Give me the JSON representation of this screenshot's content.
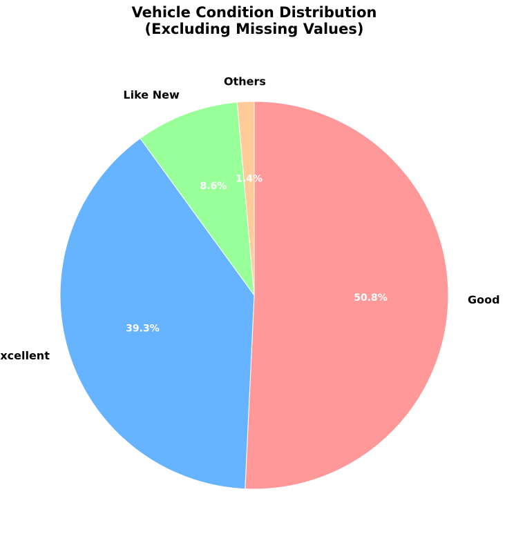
{
  "chart_data": {
    "type": "pie",
    "title": "Vehicle Condition Distribution\n(Excluding Missing Values)",
    "start_angle_deg": 90,
    "direction": "clockwise",
    "slices": [
      {
        "label": "Good",
        "value": 50.8,
        "pct_label": "50.8%",
        "color": "#ff9999"
      },
      {
        "label": "Excellent",
        "value": 39.3,
        "pct_label": "39.3%",
        "color": "#66b3ff"
      },
      {
        "label": "Like New",
        "value": 8.6,
        "pct_label": "8.6%",
        "color": "#99ff99"
      },
      {
        "label": "Others",
        "value": 1.4,
        "pct_label": "1.4%",
        "color": "#ffcc99"
      }
    ]
  }
}
